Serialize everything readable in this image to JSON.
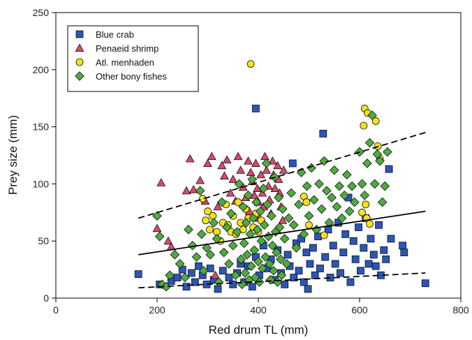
{
  "chart_data": {
    "type": "scatter",
    "title": "",
    "xlabel": "Red drum TL (mm)",
    "ylabel": "Prey size (mm)",
    "xlim": [
      0,
      800
    ],
    "ylim": [
      0,
      250
    ],
    "xticks": [
      "0",
      "200",
      "400",
      "600",
      "800"
    ],
    "yticks": [
      "0",
      "50",
      "100",
      "150",
      "200",
      "250"
    ],
    "grid": false,
    "legend_position": "top-left",
    "series": [
      {
        "name": "Blue crab",
        "marker": "square",
        "color": "#2b56b8",
        "points": [
          [
            163,
            21
          ],
          [
            205,
            12
          ],
          [
            228,
            15
          ],
          [
            240,
            18
          ],
          [
            250,
            25
          ],
          [
            258,
            10
          ],
          [
            268,
            22
          ],
          [
            275,
            14
          ],
          [
            282,
            28
          ],
          [
            290,
            20
          ],
          [
            298,
            12
          ],
          [
            305,
            26
          ],
          [
            312,
            16
          ],
          [
            320,
            8
          ],
          [
            330,
            24
          ],
          [
            342,
            18
          ],
          [
            350,
            12
          ],
          [
            358,
            22
          ],
          [
            365,
            30
          ],
          [
            372,
            14
          ],
          [
            380,
            28
          ],
          [
            388,
            10
          ],
          [
            395,
            166
          ],
          [
            395,
            36
          ],
          [
            402,
            20
          ],
          [
            410,
            46
          ],
          [
            418,
            26
          ],
          [
            425,
            34
          ],
          [
            432,
            16
          ],
          [
            438,
            42
          ],
          [
            445,
            22
          ],
          [
            452,
            12
          ],
          [
            458,
            38
          ],
          [
            462,
            28
          ],
          [
            468,
            118
          ],
          [
            470,
            18
          ],
          [
            475,
            48
          ],
          [
            480,
            24
          ],
          [
            485,
            52
          ],
          [
            490,
            14
          ],
          [
            495,
            40
          ],
          [
            498,
            8
          ],
          [
            502,
            30
          ],
          [
            508,
            44
          ],
          [
            512,
            20
          ],
          [
            518,
            54
          ],
          [
            522,
            26
          ],
          [
            528,
            144
          ],
          [
            532,
            36
          ],
          [
            538,
            60
          ],
          [
            542,
            18
          ],
          [
            548,
            46
          ],
          [
            552,
            30
          ],
          [
            558,
            66
          ],
          [
            562,
            22
          ],
          [
            568,
            40
          ],
          [
            572,
            56
          ],
          [
            578,
            88
          ],
          [
            582,
            14
          ],
          [
            588,
            50
          ],
          [
            592,
            34
          ],
          [
            598,
            62
          ],
          [
            602,
            24
          ],
          [
            608,
            44
          ],
          [
            612,
            70
          ],
          [
            618,
            30
          ],
          [
            622,
            52
          ],
          [
            628,
            38
          ],
          [
            632,
            28
          ],
          [
            638,
            64
          ],
          [
            642,
            20
          ],
          [
            648,
            42
          ],
          [
            652,
            34
          ],
          [
            658,
            113
          ],
          [
            662,
            52
          ],
          [
            685,
            46
          ],
          [
            688,
            40
          ],
          [
            730,
            13
          ]
        ]
      },
      {
        "name": "Penaeid shrimp",
        "marker": "triangle",
        "color": "#d84a6a",
        "points": [
          [
            200,
            61
          ],
          [
            208,
            101
          ],
          [
            222,
            50
          ],
          [
            228,
            45
          ],
          [
            258,
            94
          ],
          [
            265,
            122
          ],
          [
            272,
            95
          ],
          [
            285,
            103
          ],
          [
            295,
            85
          ],
          [
            300,
            118
          ],
          [
            308,
            124
          ],
          [
            315,
            20
          ],
          [
            320,
            80
          ],
          [
            328,
            116
          ],
          [
            333,
            107
          ],
          [
            338,
            121
          ],
          [
            345,
            92
          ],
          [
            350,
            104
          ],
          [
            355,
            85
          ],
          [
            360,
            124
          ],
          [
            365,
            112
          ],
          [
            370,
            97
          ],
          [
            375,
            88
          ],
          [
            380,
            120
          ],
          [
            382,
            76
          ],
          [
            385,
            110
          ],
          [
            388,
            102
          ],
          [
            392,
            90
          ],
          [
            395,
            118
          ],
          [
            398,
            96
          ],
          [
            400,
            84
          ],
          [
            402,
            70
          ],
          [
            405,
            108
          ],
          [
            408,
            92
          ],
          [
            410,
            80
          ],
          [
            413,
            124
          ],
          [
            416,
            112
          ],
          [
            420,
            98
          ],
          [
            422,
            86
          ],
          [
            425,
            74
          ],
          [
            428,
            120
          ],
          [
            430,
            108
          ],
          [
            433,
            96
          ],
          [
            436,
            60
          ],
          [
            438,
            116
          ],
          [
            440,
            104
          ],
          [
            442,
            92
          ],
          [
            445,
            80
          ],
          [
            448,
            68
          ],
          [
            450,
            112
          ]
        ]
      },
      {
        "name": "Atl. menhaden",
        "marker": "circle",
        "color": "#f3e21a",
        "points": [
          [
            290,
            87
          ],
          [
            296,
            68
          ],
          [
            300,
            76
          ],
          [
            304,
            60
          ],
          [
            310,
            72
          ],
          [
            318,
            58
          ],
          [
            325,
            50
          ],
          [
            330,
            66
          ],
          [
            336,
            82
          ],
          [
            340,
            64
          ],
          [
            346,
            58
          ],
          [
            350,
            72
          ],
          [
            356,
            56
          ],
          [
            360,
            84
          ],
          [
            365,
            66
          ],
          [
            370,
            60
          ],
          [
            375,
            78
          ],
          [
            380,
            70
          ],
          [
            385,
            205
          ],
          [
            390,
            62
          ],
          [
            395,
            74
          ],
          [
            400,
            58
          ],
          [
            406,
            68
          ],
          [
            490,
            89
          ],
          [
            495,
            84
          ],
          [
            500,
            64
          ],
          [
            530,
            55
          ],
          [
            605,
            75
          ],
          [
            608,
            151
          ],
          [
            610,
            166
          ],
          [
            612,
            82
          ],
          [
            614,
            70
          ],
          [
            616,
            162
          ],
          [
            620,
            65
          ],
          [
            632,
            155
          ],
          [
            636,
            133
          ],
          [
            640,
            122
          ]
        ]
      },
      {
        "name": "Other bony fishes",
        "marker": "diamond",
        "color": "#4fab3f",
        "points": [
          [
            200,
            72
          ],
          [
            205,
            54
          ],
          [
            210,
            12
          ],
          [
            218,
            10
          ],
          [
            225,
            20
          ],
          [
            235,
            38
          ],
          [
            245,
            30
          ],
          [
            255,
            18
          ],
          [
            262,
            60
          ],
          [
            270,
            46
          ],
          [
            278,
            36
          ],
          [
            285,
            94
          ],
          [
            288,
            56
          ],
          [
            292,
            24
          ],
          [
            298,
            44
          ],
          [
            305,
            38
          ],
          [
            312,
            66
          ],
          [
            318,
            52
          ],
          [
            322,
            14
          ],
          [
            328,
            84
          ],
          [
            332,
            40
          ],
          [
            338,
            62
          ],
          [
            342,
            30
          ],
          [
            346,
            74
          ],
          [
            350,
            46
          ],
          [
            355,
            20
          ],
          [
            358,
            58
          ],
          [
            362,
            100
          ],
          [
            366,
            34
          ],
          [
            368,
            12
          ],
          [
            370,
            80
          ],
          [
            372,
            48
          ],
          [
            374,
            22
          ],
          [
            376,
            66
          ],
          [
            378,
            38
          ],
          [
            380,
            90
          ],
          [
            382,
            16
          ],
          [
            384,
            56
          ],
          [
            386,
            28
          ],
          [
            388,
            104
          ],
          [
            390,
            70
          ],
          [
            392,
            42
          ],
          [
            394,
            18
          ],
          [
            396,
            84
          ],
          [
            398,
            60
          ],
          [
            400,
            32
          ],
          [
            402,
            14
          ],
          [
            404,
            76
          ],
          [
            406,
            50
          ],
          [
            408,
            26
          ],
          [
            410,
            96
          ],
          [
            412,
            64
          ],
          [
            414,
            36
          ],
          [
            416,
            118
          ],
          [
            418,
            82
          ],
          [
            420,
            54
          ],
          [
            422,
            30
          ],
          [
            424,
            16
          ],
          [
            426,
            72
          ],
          [
            428,
            46
          ],
          [
            430,
            24
          ],
          [
            432,
            106
          ],
          [
            434,
            58
          ],
          [
            436,
            40
          ],
          [
            438,
            14
          ],
          [
            440,
            88
          ],
          [
            442,
            62
          ],
          [
            444,
            34
          ],
          [
            446,
            20
          ],
          [
            448,
            78
          ],
          [
            452,
            52
          ],
          [
            456,
            30
          ],
          [
            460,
            70
          ],
          [
            465,
            92
          ],
          [
            470,
            64
          ],
          [
            475,
            44
          ],
          [
            480,
            82
          ],
          [
            485,
            110
          ],
          [
            490,
            56
          ],
          [
            496,
            98
          ],
          [
            500,
            72
          ],
          [
            505,
            114
          ],
          [
            510,
            86
          ],
          [
            515,
            60
          ],
          [
            520,
            100
          ],
          [
            525,
            78
          ],
          [
            530,
            120
          ],
          [
            535,
            94
          ],
          [
            540,
            66
          ],
          [
            545,
            88
          ],
          [
            550,
            112
          ],
          [
            555,
            80
          ],
          [
            560,
            98
          ],
          [
            565,
            70
          ],
          [
            570,
            90
          ],
          [
            575,
            108
          ],
          [
            580,
            76
          ],
          [
            585,
            98
          ],
          [
            590,
            84
          ],
          [
            600,
            128
          ],
          [
            605,
            100
          ],
          [
            610,
            90
          ],
          [
            615,
            118
          ],
          [
            620,
            136
          ],
          [
            625,
            160
          ],
          [
            630,
            100
          ],
          [
            635,
            126
          ],
          [
            640,
            120
          ],
          [
            645,
            84
          ],
          [
            650,
            98
          ],
          [
            655,
            128
          ]
        ]
      }
    ],
    "trend_lines": [
      {
        "name": "upper",
        "style": "dashed",
        "x": [
          163,
          730
        ],
        "y": [
          70,
          145
        ]
      },
      {
        "name": "mean",
        "style": "solid",
        "x": [
          163,
          730
        ],
        "y": [
          38,
          76
        ]
      },
      {
        "name": "lower",
        "style": "dashed",
        "x": [
          163,
          730
        ],
        "y": [
          9,
          22
        ]
      }
    ]
  }
}
